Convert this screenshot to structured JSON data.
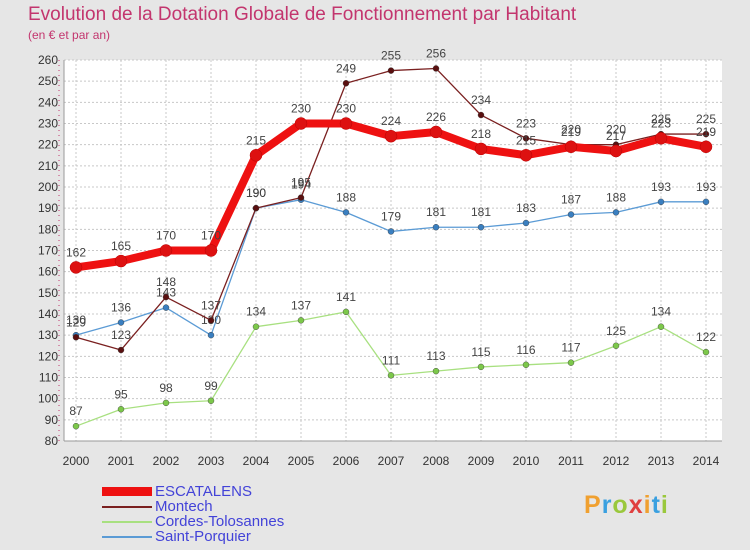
{
  "header": {
    "title": "Evolution de la Dotation Globale de Fonctionnement par Habitant",
    "subtitle": "(en € et par an)"
  },
  "logo": {
    "text": "Proxiti",
    "colors": [
      "#f0a030",
      "#3aa0e0",
      "#9ac83c",
      "#e04040"
    ]
  },
  "colors": {
    "background": "#e6e6e6",
    "plot_background": "#ffffff",
    "grid": "#c8c8c8",
    "axis_text": "#333333",
    "label_text": "#444444"
  },
  "chart_data": {
    "type": "line",
    "title": "Evolution de la Dotation Globale de Fonctionnement par Habitant",
    "subtitle": "(en € et par an)",
    "xlabel": "",
    "ylabel": "",
    "ylim": [
      80,
      260
    ],
    "y_ticks": [
      80,
      90,
      100,
      110,
      120,
      130,
      140,
      150,
      160,
      170,
      180,
      190,
      200,
      210,
      220,
      230,
      240,
      250,
      260
    ],
    "categories": [
      "2000",
      "2001",
      "2002",
      "2003",
      "2004",
      "2005",
      "2006",
      "2007",
      "2008",
      "2009",
      "2010",
      "2011",
      "2012",
      "2013",
      "2014"
    ],
    "grid": true,
    "legend_position": "bottom-left",
    "series": [
      {
        "name": "Saint-Porquier",
        "color": "#5b9bd5",
        "marker": "#3a7fc0",
        "values": [
          130,
          136,
          143,
          130,
          190,
          194,
          188,
          179,
          181,
          181,
          183,
          187,
          188,
          193,
          193
        ]
      },
      {
        "name": "Cordes-Tolosannes",
        "color": "#a8e080",
        "marker": "#7cc84a",
        "values": [
          87,
          95,
          98,
          99,
          134,
          137,
          141,
          111,
          113,
          115,
          116,
          117,
          125,
          134,
          122
        ]
      },
      {
        "name": "Montech",
        "color": "#7a2020",
        "marker": "#5a1010",
        "values": [
          129,
          123,
          148,
          137,
          190,
          195,
          249,
          255,
          256,
          234,
          223,
          220,
          220,
          225,
          225
        ]
      },
      {
        "name": "ESCATALENS",
        "color": "#ee1111",
        "marker": "#dd1111",
        "values": [
          162,
          165,
          170,
          170,
          215,
          230,
          230,
          224,
          226,
          218,
          215,
          219,
          217,
          223,
          219
        ]
      }
    ]
  }
}
